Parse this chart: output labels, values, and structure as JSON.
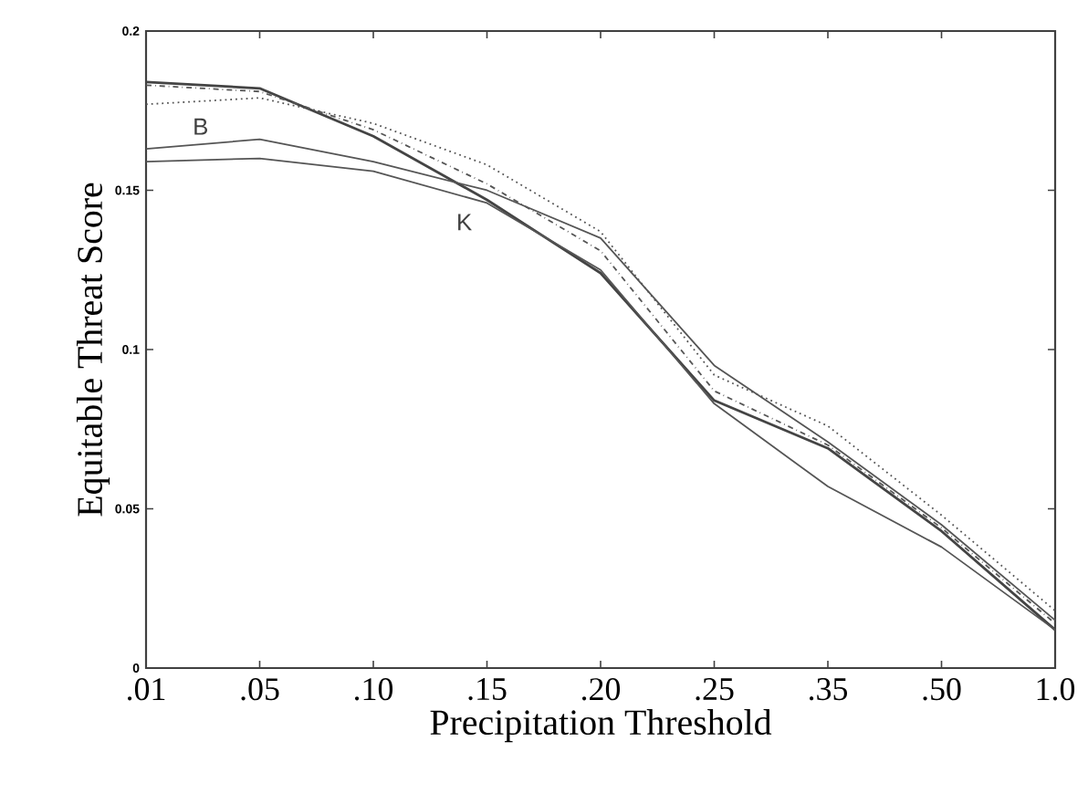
{
  "chart_data": {
    "type": "line",
    "xlabel": "Precipitation Threshold",
    "ylabel": "Equitable Threat Score",
    "categories": [
      ".01",
      ".05",
      ".10",
      ".15",
      ".20",
      ".25",
      ".35",
      ".50",
      "1.0"
    ],
    "ylim": [
      0,
      0.2
    ],
    "yticks": [
      0,
      0.05,
      0.1,
      0.15,
      0.2
    ],
    "grid": false,
    "marker": "none",
    "series": [
      {
        "color": "#444444",
        "line_style": "solid",
        "values": [
          0.184,
          0.182,
          0.167,
          0.147,
          0.124,
          0.084,
          0.069,
          0.043,
          0.012
        ]
      },
      {
        "color": "#555555",
        "line_style": "dashdot",
        "values": [
          0.183,
          0.181,
          0.169,
          0.152,
          0.131,
          0.087,
          0.07,
          0.044,
          0.014
        ]
      },
      {
        "color": "#555555",
        "line_style": "dotted",
        "values": [
          0.177,
          0.179,
          0.171,
          0.158,
          0.137,
          0.092,
          0.076,
          0.048,
          0.018
        ]
      },
      {
        "color": "#555555",
        "line_style": "solid",
        "values": [
          0.163,
          0.166,
          0.159,
          0.15,
          0.135,
          0.095,
          0.071,
          0.045,
          0.015
        ]
      },
      {
        "color": "#555555",
        "line_style": "solid",
        "values": [
          0.159,
          0.16,
          0.156,
          0.146,
          0.125,
          0.083,
          0.057,
          0.038,
          0.012
        ]
      }
    ],
    "annotations": [
      "B",
      "K"
    ]
  }
}
